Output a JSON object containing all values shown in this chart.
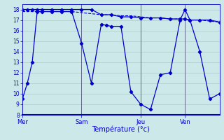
{
  "background_color": "#cce8e8",
  "grid_color": "#aacccc",
  "line_color": "#0000cc",
  "xlabel": "Température (°c)",
  "ylim": [
    8,
    18.5
  ],
  "yticks": [
    8,
    9,
    10,
    11,
    12,
    13,
    14,
    15,
    16,
    17,
    18
  ],
  "day_labels": [
    "Mer",
    "Sam",
    "Jeu",
    "Ven"
  ],
  "day_positions": [
    0,
    12,
    24,
    33
  ],
  "xlim": [
    0,
    40
  ],
  "series1_x": [
    0,
    1,
    2,
    3,
    4,
    6,
    8,
    10,
    12,
    14,
    16,
    17,
    18,
    20,
    22,
    24,
    26,
    28,
    30,
    32,
    33,
    34,
    36,
    38,
    40
  ],
  "series1_y": [
    9.5,
    11.0,
    13.0,
    17.8,
    17.8,
    17.8,
    17.8,
    17.8,
    14.8,
    11.0,
    16.6,
    16.5,
    16.4,
    16.4,
    10.2,
    9.0,
    8.5,
    11.8,
    12.0,
    17.0,
    18.0,
    17.0,
    14.0,
    9.5,
    10.0
  ],
  "series2_x": [
    0,
    1,
    2,
    3,
    4,
    6,
    8,
    10,
    12,
    14,
    16,
    18,
    20,
    22,
    24,
    26,
    28,
    30,
    32,
    33,
    34,
    36,
    38,
    40
  ],
  "series2_y": [
    18.0,
    18.0,
    18.0,
    18.0,
    18.0,
    18.0,
    18.0,
    18.0,
    18.0,
    18.0,
    17.5,
    17.5,
    17.3,
    17.3,
    17.2,
    17.2,
    17.2,
    17.1,
    17.1,
    17.1,
    17.0,
    17.0,
    17.0,
    16.8
  ],
  "series3_x": [
    0,
    4,
    8,
    10,
    12,
    14,
    16,
    18,
    20,
    22,
    24,
    26,
    28,
    30,
    32,
    33,
    34,
    36,
    38,
    40
  ],
  "series3_y": [
    17.8,
    17.8,
    17.8,
    17.8,
    17.7,
    17.6,
    17.5,
    17.5,
    17.4,
    17.4,
    17.3,
    17.2,
    17.2,
    17.1,
    17.1,
    17.1,
    17.0,
    17.0,
    16.9,
    16.8
  ]
}
